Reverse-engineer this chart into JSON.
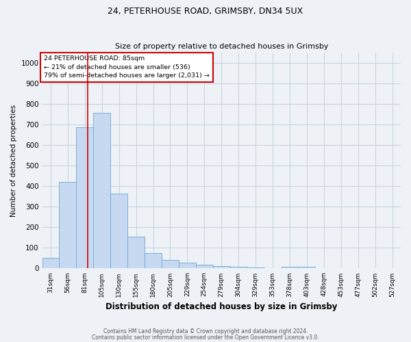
{
  "title1": "24, PETERHOUSE ROAD, GRIMSBY, DN34 5UX",
  "title2": "Size of property relative to detached houses in Grimsby",
  "xlabel": "Distribution of detached houses by size in Grimsby",
  "ylabel": "Number of detached properties",
  "categories": [
    "31sqm",
    "56sqm",
    "81sqm",
    "105sqm",
    "130sqm",
    "155sqm",
    "180sqm",
    "205sqm",
    "229sqm",
    "254sqm",
    "279sqm",
    "304sqm",
    "329sqm",
    "353sqm",
    "378sqm",
    "403sqm",
    "428sqm",
    "453sqm",
    "477sqm",
    "502sqm",
    "527sqm"
  ],
  "values": [
    50,
    420,
    685,
    755,
    365,
    155,
    75,
    40,
    28,
    18,
    12,
    8,
    5,
    3,
    8,
    8,
    3,
    0,
    0,
    0,
    0
  ],
  "bar_color": "#c6d9f0",
  "bar_edge_color": "#7aafd4",
  "grid_color": "#c8d4e0",
  "background_color": "#eef2f7",
  "red_line_x": 2.17,
  "annotation_text": "24 PETERHOUSE ROAD: 85sqm\n← 21% of detached houses are smaller (536)\n79% of semi-detached houses are larger (2,031) →",
  "annotation_box_color": "#ffffff",
  "annotation_box_edge": "#cc0000",
  "red_line_color": "#cc0000",
  "ylim": [
    0,
    1050
  ],
  "yticks": [
    0,
    100,
    200,
    300,
    400,
    500,
    600,
    700,
    800,
    900,
    1000
  ],
  "footnote1": "Contains HM Land Registry data © Crown copyright and database right 2024.",
  "footnote2": "Contains public sector information licensed under the Open Government Licence v3.0."
}
